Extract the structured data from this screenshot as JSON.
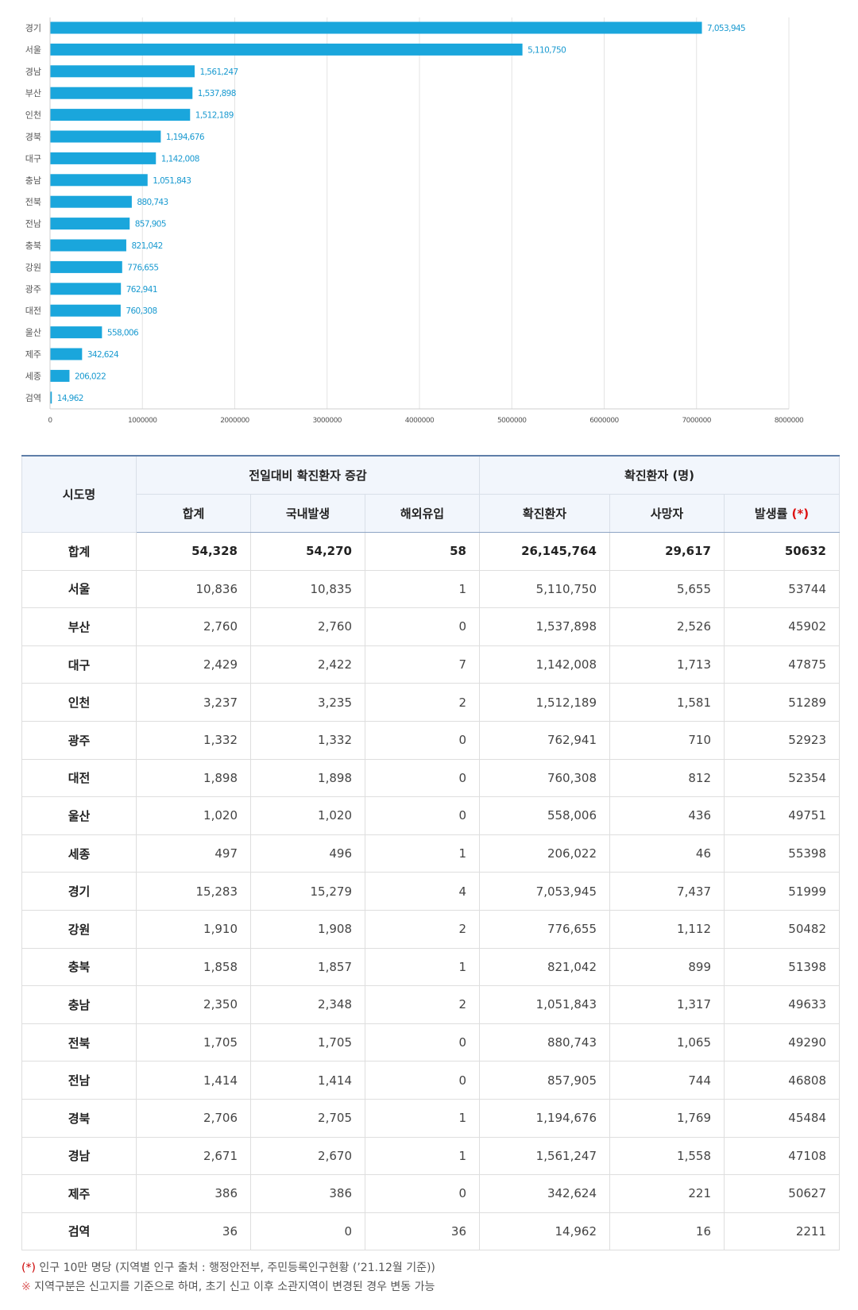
{
  "chart_data": {
    "type": "bar",
    "orientation": "horizontal",
    "categories": [
      "경기",
      "서울",
      "경남",
      "부산",
      "인천",
      "경북",
      "대구",
      "충남",
      "전북",
      "전남",
      "충북",
      "강원",
      "광주",
      "대전",
      "울산",
      "제주",
      "세종",
      "검역"
    ],
    "values": [
      7053945,
      5110750,
      1561247,
      1537898,
      1512189,
      1194676,
      1142008,
      1051843,
      880743,
      857905,
      821042,
      776655,
      762941,
      760308,
      558006,
      342624,
      206022,
      14962
    ],
    "value_labels": [
      "7,053,945",
      "5,110,750",
      "1,561,247",
      "1,537,898",
      "1,512,189",
      "1,194,676",
      "1,142,008",
      "1,051,843",
      "880,743",
      "857,905",
      "821,042",
      "776,655",
      "762,941",
      "760,308",
      "558,006",
      "342,624",
      "206,022",
      "14,962"
    ],
    "xlim": [
      0,
      8000000
    ],
    "x_ticks": [
      0,
      1000000,
      2000000,
      3000000,
      4000000,
      5000000,
      6000000,
      7000000,
      8000000
    ],
    "x_tick_labels": [
      "0",
      "1000000",
      "2000000",
      "3000000",
      "4000000",
      "5000000",
      "6000000",
      "7000000",
      "8000000"
    ],
    "grid": true,
    "bar_color": "#1aa6dc"
  },
  "table": {
    "header": {
      "region": "시도명",
      "group_daily": "전일대비 확진환자 증감",
      "group_cases": "확진환자 (명)",
      "total": "합계",
      "domestic": "국내발생",
      "overseas": "해외유입",
      "confirmed": "확진환자",
      "deaths": "사망자",
      "incidence": "발생률",
      "incidence_mark": "(*)"
    },
    "total_row": {
      "region": "합계",
      "total": "54,328",
      "domestic": "54,270",
      "overseas": "58",
      "confirmed": "26,145,764",
      "deaths": "29,617",
      "incidence": "50632"
    },
    "rows": [
      {
        "region": "서울",
        "total": "10,836",
        "domestic": "10,835",
        "overseas": "1",
        "confirmed": "5,110,750",
        "deaths": "5,655",
        "incidence": "53744"
      },
      {
        "region": "부산",
        "total": "2,760",
        "domestic": "2,760",
        "overseas": "0",
        "confirmed": "1,537,898",
        "deaths": "2,526",
        "incidence": "45902"
      },
      {
        "region": "대구",
        "total": "2,429",
        "domestic": "2,422",
        "overseas": "7",
        "confirmed": "1,142,008",
        "deaths": "1,713",
        "incidence": "47875"
      },
      {
        "region": "인천",
        "total": "3,237",
        "domestic": "3,235",
        "overseas": "2",
        "confirmed": "1,512,189",
        "deaths": "1,581",
        "incidence": "51289"
      },
      {
        "region": "광주",
        "total": "1,332",
        "domestic": "1,332",
        "overseas": "0",
        "confirmed": "762,941",
        "deaths": "710",
        "incidence": "52923"
      },
      {
        "region": "대전",
        "total": "1,898",
        "domestic": "1,898",
        "overseas": "0",
        "confirmed": "760,308",
        "deaths": "812",
        "incidence": "52354"
      },
      {
        "region": "울산",
        "total": "1,020",
        "domestic": "1,020",
        "overseas": "0",
        "confirmed": "558,006",
        "deaths": "436",
        "incidence": "49751"
      },
      {
        "region": "세종",
        "total": "497",
        "domestic": "496",
        "overseas": "1",
        "confirmed": "206,022",
        "deaths": "46",
        "incidence": "55398"
      },
      {
        "region": "경기",
        "total": "15,283",
        "domestic": "15,279",
        "overseas": "4",
        "confirmed": "7,053,945",
        "deaths": "7,437",
        "incidence": "51999"
      },
      {
        "region": "강원",
        "total": "1,910",
        "domestic": "1,908",
        "overseas": "2",
        "confirmed": "776,655",
        "deaths": "1,112",
        "incidence": "50482"
      },
      {
        "region": "충북",
        "total": "1,858",
        "domestic": "1,857",
        "overseas": "1",
        "confirmed": "821,042",
        "deaths": "899",
        "incidence": "51398"
      },
      {
        "region": "충남",
        "total": "2,350",
        "domestic": "2,348",
        "overseas": "2",
        "confirmed": "1,051,843",
        "deaths": "1,317",
        "incidence": "49633"
      },
      {
        "region": "전북",
        "total": "1,705",
        "domestic": "1,705",
        "overseas": "0",
        "confirmed": "880,743",
        "deaths": "1,065",
        "incidence": "49290"
      },
      {
        "region": "전남",
        "total": "1,414",
        "domestic": "1,414",
        "overseas": "0",
        "confirmed": "857,905",
        "deaths": "744",
        "incidence": "46808"
      },
      {
        "region": "경북",
        "total": "2,706",
        "domestic": "2,705",
        "overseas": "1",
        "confirmed": "1,194,676",
        "deaths": "1,769",
        "incidence": "45484"
      },
      {
        "region": "경남",
        "total": "2,671",
        "domestic": "2,670",
        "overseas": "1",
        "confirmed": "1,561,247",
        "deaths": "1,558",
        "incidence": "47108"
      },
      {
        "region": "제주",
        "total": "386",
        "domestic": "386",
        "overseas": "0",
        "confirmed": "342,624",
        "deaths": "221",
        "incidence": "50627"
      },
      {
        "region": "검역",
        "total": "36",
        "domestic": "0",
        "overseas": "36",
        "confirmed": "14,962",
        "deaths": "16",
        "incidence": "2211"
      }
    ]
  },
  "notes": {
    "line1_mark": "(*)",
    "line1_text": " 인구 10만 명당 (지역별 인구 출처 : 행정안전부, 주민등록인구현황 (’21.12월 기준))",
    "line2_mark": "※",
    "line2_text": " 지역구분은 신고지를 기준으로 하며, 초기 신고 이후 소관지역이 변경된 경우 변동 가능"
  }
}
